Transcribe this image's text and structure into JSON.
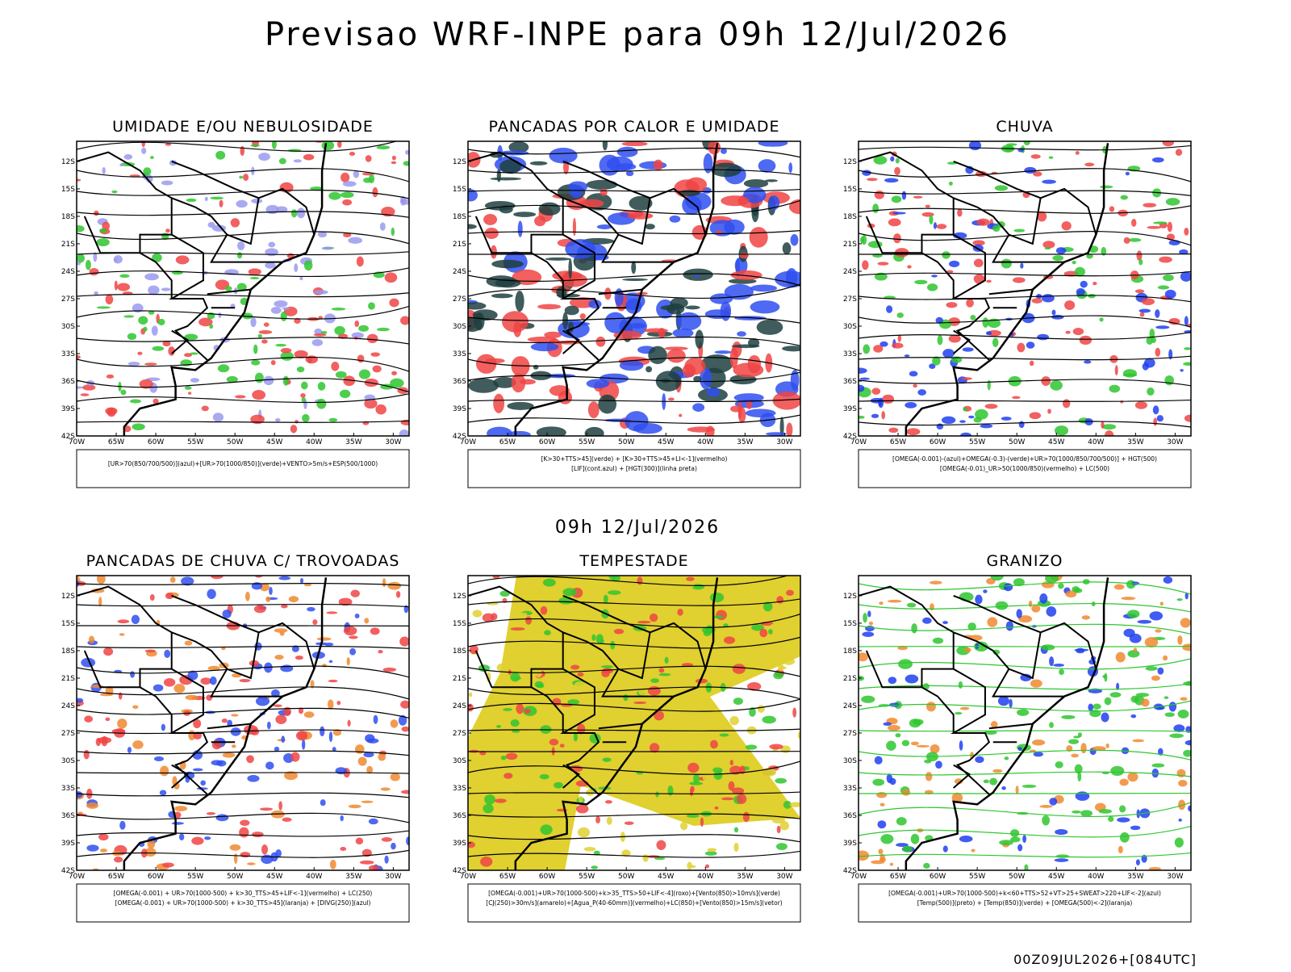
{
  "header": {
    "title": "Previsao WRF-INPE  para 09h 12/Jul/2026",
    "subtitle": "09h 12/Jul/2026",
    "footer": "00Z09JUL2026+[084UTC]"
  },
  "lat_labels": [
    "12S",
    "15S",
    "18S",
    "21S",
    "24S",
    "27S",
    "30S",
    "33S",
    "36S",
    "39S",
    "42S"
  ],
  "lon_labels": [
    "70W",
    "65W",
    "60W",
    "55W",
    "50W",
    "45W",
    "40W",
    "35W",
    "30W"
  ],
  "panels": [
    {
      "title": "UMIDADE E/OU NEBULOSIDADE",
      "caption": [
        "[UR>70(850/700/500)](azul)+[UR>70(1000/850)](verde)+VENTO>5m/s+ESP(500/1000)"
      ]
    },
    {
      "title": "PANCADAS POR CALOR E UMIDADE",
      "caption": [
        "[K>30+TTS>45](verde) + [K>30+TTS>45+LI<-1](vermelho)",
        "[LIF](cont.azul) + [HGT(300)](linha preta)"
      ]
    },
    {
      "title": "CHUVA",
      "caption": [
        "[OMEGA(-0.001)-(azul)+OMEGA(-0.3)-(verde)+UR>70(1000/850/700/500)] + HGT(500)",
        "[OMEGA(-0.01)_UR>50(1000/850)(vermelho) + LC(500)"
      ]
    },
    {
      "title": "PANCADAS DE CHUVA C/ TROVOADAS",
      "caption": [
        "[OMEGA(-0.001) + UR>70(1000-500) + k>30_TTS>45+LIF<-1](vermelho) + LC(250)",
        "[OMEGA(-0.001) + UR>70(1000-500) + k>30_TTS>45](laranja) + [DIVG(250)](azul)"
      ]
    },
    {
      "title": "TEMPESTADE",
      "caption": [
        "[OMEGA(-0.001)+UR>70(1000-500)+k>35_TTS>50+LIF<-4](roxo)+[Vento(850)>10m/s](verde)",
        "[CJ(250)>30m/s](amarelo)+[Agua_P(40-60mm)](vermelho)+LC(850)+[Vento(850)>15m/s](vetor)"
      ]
    },
    {
      "title": "GRANIZO",
      "caption": [
        "[OMEGA(-0.001)+UR>70(1000-500)+k<60+TTS>52+VT>25+SWEAT>220+LIF<-2](azul)",
        "[Temp(500)](preto) + [Temp(850)](verde) + [OMEGA(500)<-2](laranja)"
      ]
    }
  ]
}
